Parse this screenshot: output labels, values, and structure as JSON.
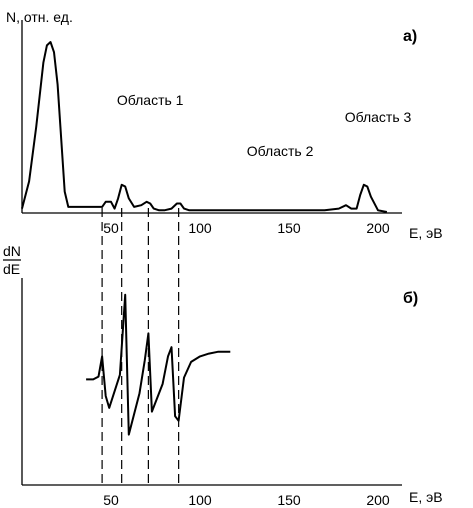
{
  "chart_data": [
    {
      "panel_label": "а)",
      "type": "line",
      "ylabel": "N, отн. ед.",
      "xlabel": "E, эВ",
      "xticks": [
        50,
        100,
        150,
        200
      ],
      "xlim": [
        0,
        210
      ],
      "ylim": [
        0,
        100
      ],
      "annotations": [
        {
          "text": "Область 1",
          "x": 72,
          "y": 63
        },
        {
          "text": "Область  2",
          "x": 145,
          "y": 33
        },
        {
          "text": "Область  3",
          "x": 200,
          "y": 53
        }
      ],
      "series": [
        {
          "x": [
            0,
            4,
            8,
            12,
            14,
            16,
            18,
            20,
            24,
            26,
            45,
            47,
            50,
            52,
            54,
            56,
            58,
            60,
            63,
            67,
            70,
            72,
            74,
            77,
            80,
            84,
            87,
            89,
            91,
            94,
            96,
            100,
            130,
            170,
            178,
            182,
            185,
            188,
            190,
            192,
            194,
            196,
            200,
            205
          ],
          "y": [
            2,
            18,
            50,
            88,
            98,
            100,
            94,
            75,
            12,
            3,
            3,
            6,
            6,
            2,
            8,
            16,
            15,
            8,
            3,
            4,
            6,
            5,
            2,
            1,
            1,
            2,
            5,
            5,
            2,
            1,
            1,
            1,
            1,
            1,
            2,
            4,
            2,
            2,
            10,
            16,
            15,
            9,
            1,
            0
          ]
        }
      ]
    },
    {
      "panel_label": "б)",
      "type": "line",
      "ylabel_top": "dN",
      "ylabel_bottom": "dE",
      "xlabel": "E, эВ",
      "xticks": [
        50,
        100,
        150,
        200
      ],
      "xlim": [
        0,
        210
      ],
      "ylim": [
        -100,
        100
      ],
      "series": [
        {
          "x": [
            36,
            40,
            43,
            45,
            47,
            49,
            55,
            58,
            60,
            66,
            69,
            71,
            73,
            79,
            82,
            84,
            86,
            88,
            91,
            95,
            100,
            105,
            110,
            117
          ],
          "y": [
            5,
            5,
            8,
            30,
            -13,
            -26,
            10,
            97,
            -55,
            -10,
            26,
            55,
            -30,
            0,
            30,
            40,
            -35,
            -40,
            7,
            24,
            30,
            33,
            35,
            35
          ]
        }
      ],
      "dashed_lines_x": [
        45,
        56,
        71,
        88
      ]
    }
  ]
}
